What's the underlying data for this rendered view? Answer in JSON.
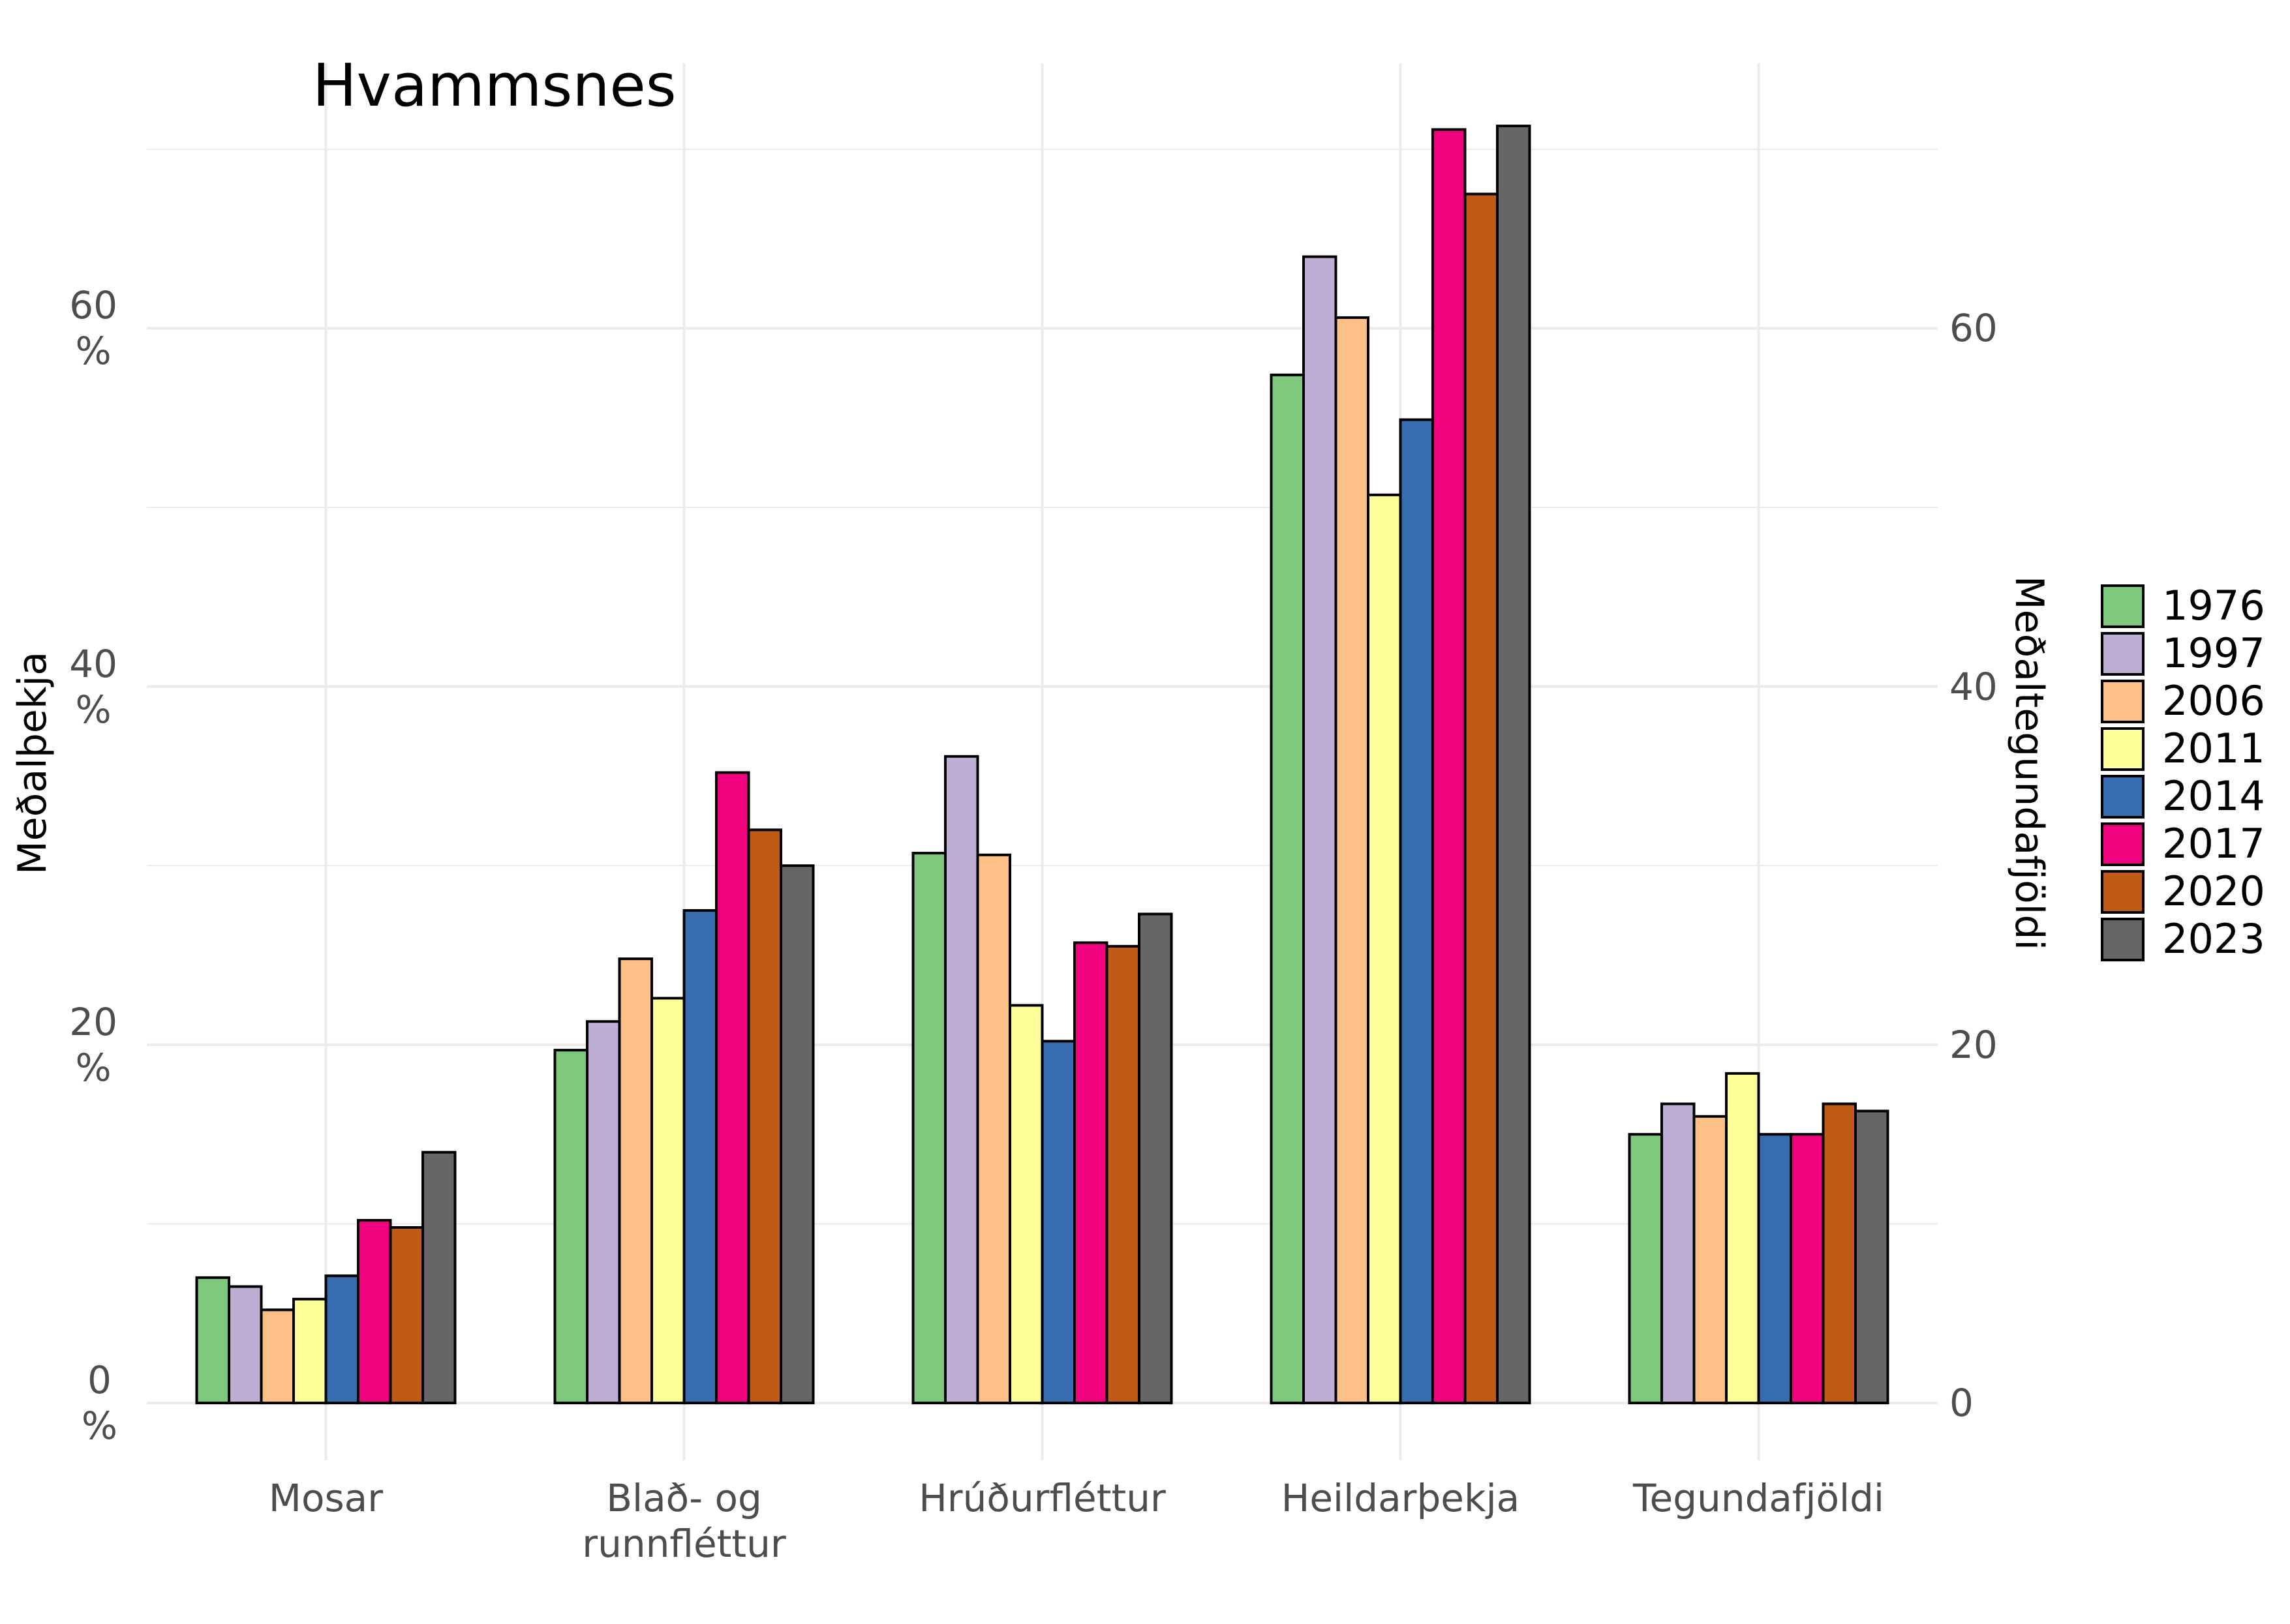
{
  "chart_data": {
    "type": "bar",
    "title": "Hvammsnes",
    "y_label": "Meðalþekja",
    "y2_label": "Meðaltegundafjöldi",
    "categories": [
      "Mosar",
      "Blað- og\nrunnfléttur",
      "Hrúðurfléttur",
      "Heildarþekja",
      "Tegundafjöldi"
    ],
    "series": [
      {
        "name": "1976",
        "color": "#7fc97f",
        "values": [
          7.0,
          19.7,
          30.7,
          57.4,
          15.0
        ]
      },
      {
        "name": "1997",
        "color": "#beaed4",
        "values": [
          6.5,
          21.3,
          36.1,
          64.0,
          16.7
        ]
      },
      {
        "name": "2006",
        "color": "#fdc086",
        "values": [
          5.2,
          24.8,
          30.6,
          60.6,
          16.0
        ]
      },
      {
        "name": "2011",
        "color": "#ffff99",
        "values": [
          5.8,
          22.6,
          22.2,
          50.7,
          18.4
        ]
      },
      {
        "name": "2014",
        "color": "#386cb0",
        "values": [
          7.1,
          27.5,
          20.2,
          54.9,
          15.0
        ]
      },
      {
        "name": "2017",
        "color": "#f0027f",
        "values": [
          10.2,
          35.2,
          25.7,
          71.1,
          15.0
        ]
      },
      {
        "name": "2020",
        "color": "#bf5b17",
        "values": [
          9.8,
          32.0,
          25.5,
          67.5,
          16.7
        ]
      },
      {
        "name": "2023",
        "color": "#666666",
        "values": [
          14.0,
          30.0,
          27.3,
          71.3,
          16.3
        ]
      }
    ],
    "ylim": [
      -3.2,
      74.8
    ],
    "yticks": [
      {
        "value": 0,
        "label": "0\n%"
      },
      {
        "value": 20,
        "label": "20\n%"
      },
      {
        "value": 40,
        "label": "40\n%"
      },
      {
        "value": 60,
        "label": "60\n%"
      }
    ],
    "y2lim": [
      -3.2,
      74.8
    ],
    "y2ticks": [
      0,
      20,
      40,
      60
    ],
    "grid": true,
    "minor_grid": true,
    "legend": "right"
  }
}
